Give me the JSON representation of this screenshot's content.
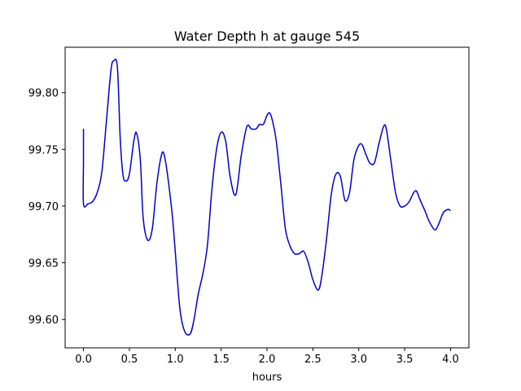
{
  "chart_data": {
    "type": "line",
    "title": "Water Depth h at gauge 545",
    "xlabel": "hours",
    "ylabel": "",
    "xlim": [
      -0.2,
      4.2
    ],
    "ylim": [
      99.575,
      99.84
    ],
    "x_ticks": [
      0.0,
      0.5,
      1.0,
      1.5,
      2.0,
      2.5,
      3.0,
      3.5,
      4.0
    ],
    "x_tick_labels": [
      "0.0",
      "0.5",
      "1.0",
      "1.5",
      "2.0",
      "2.5",
      "3.0",
      "3.5",
      "4.0"
    ],
    "y_ticks": [
      99.6,
      99.65,
      99.7,
      99.75,
      99.8
    ],
    "y_tick_labels": [
      "99.60",
      "99.65",
      "99.70",
      "99.75",
      "99.80"
    ],
    "grid": false,
    "line_color": "#0000cc",
    "series": [
      {
        "x": [
          0.0,
          0.0,
          0.0,
          0.05,
          0.1,
          0.15,
          0.2,
          0.25,
          0.3,
          0.33,
          0.37,
          0.4,
          0.43,
          0.46,
          0.5,
          0.55,
          0.58,
          0.62,
          0.65,
          0.7,
          0.75,
          0.8,
          0.85,
          0.88,
          0.92,
          0.97,
          1.0,
          1.05,
          1.1,
          1.16,
          1.2,
          1.25,
          1.3,
          1.35,
          1.4,
          1.45,
          1.5,
          1.55,
          1.6,
          1.66,
          1.72,
          1.78,
          1.83,
          1.88,
          1.92,
          1.96,
          2.0,
          2.03,
          2.06,
          2.1,
          2.15,
          2.2,
          2.25,
          2.3,
          2.35,
          2.4,
          2.45,
          2.5,
          2.56,
          2.6,
          2.65,
          2.7,
          2.75,
          2.8,
          2.85,
          2.9,
          2.95,
          3.02,
          3.08,
          3.12,
          3.17,
          3.22,
          3.27,
          3.3,
          3.35,
          3.4,
          3.45,
          3.5,
          3.55,
          3.6,
          3.63,
          3.67,
          3.72,
          3.77,
          3.83,
          3.87,
          3.92,
          3.97,
          4.0
        ],
        "y": [
          99.768,
          99.74,
          99.702,
          99.702,
          99.704,
          99.712,
          99.73,
          99.775,
          99.82,
          99.828,
          99.822,
          99.76,
          99.728,
          99.722,
          99.728,
          99.758,
          99.764,
          99.74,
          99.69,
          99.67,
          99.68,
          99.72,
          99.745,
          99.745,
          99.725,
          99.69,
          99.66,
          99.61,
          99.59,
          99.587,
          99.598,
          99.622,
          99.64,
          99.665,
          99.715,
          99.75,
          99.765,
          99.757,
          99.725,
          99.71,
          99.745,
          99.77,
          99.768,
          99.768,
          99.772,
          99.772,
          99.78,
          99.782,
          99.775,
          99.758,
          99.72,
          99.68,
          99.665,
          99.658,
          99.658,
          99.66,
          99.65,
          99.635,
          99.626,
          99.64,
          99.672,
          99.71,
          99.728,
          99.726,
          99.705,
          99.712,
          99.742,
          99.755,
          99.745,
          99.738,
          99.738,
          99.755,
          99.77,
          99.768,
          99.74,
          99.712,
          99.7,
          99.7,
          99.704,
          99.712,
          99.713,
          99.705,
          99.696,
          99.686,
          99.679,
          99.684,
          99.694,
          99.697,
          99.696
        ]
      }
    ]
  }
}
